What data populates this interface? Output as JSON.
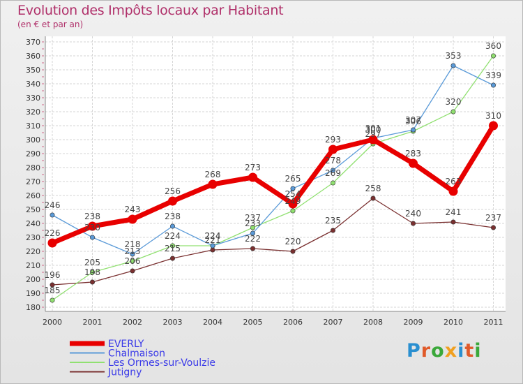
{
  "title": "Evolution des Impôts locaux par Habitant",
  "subtitle": "(en € et par an)",
  "logo": {
    "text": "Proxiti",
    "letter_colors": [
      "#2a8fd0",
      "#e05a2a",
      "#3aa83a",
      "#f0a020",
      "#2a8fd0",
      "#e05a2a",
      "#3aa83a"
    ]
  },
  "chart_data": {
    "type": "line",
    "title": "Evolution des Impôts locaux par Habitant",
    "subtitle": "(en € et par an)",
    "xlabel": "",
    "ylabel": "",
    "ylim": [
      180,
      370
    ],
    "ytick_step": 10,
    "grid": true,
    "x": [
      "2000",
      "2001",
      "2002",
      "2003",
      "2004",
      "2005",
      "2006",
      "2007",
      "2008",
      "2009",
      "2010",
      "2011"
    ],
    "series": [
      {
        "name": "EVERLY",
        "color": "#e80000",
        "values": [
          226,
          238,
          243,
          256,
          268,
          273,
          254,
          293,
          300,
          283,
          263,
          310
        ],
        "labels": [
          "226",
          "238",
          "243",
          "256",
          "268",
          "273",
          "254",
          "293",
          "300",
          "283",
          "263",
          "310"
        ]
      },
      {
        "name": "Chalmaison",
        "color": "#5a9ad8",
        "values": [
          246,
          230,
          218,
          238,
          224,
          233,
          265,
          278,
          301,
          307,
          353,
          339
        ],
        "labels": [
          "246",
          "230",
          "218",
          "238",
          "224",
          "233",
          "265",
          "278",
          "301",
          "307",
          "353",
          "339"
        ]
      },
      {
        "name": "Les Ormes-sur-Voulzie",
        "color": "#90e070",
        "values": [
          185,
          205,
          213,
          224,
          224,
          237,
          249,
          269,
          297,
          306,
          320,
          360
        ],
        "labels": [
          "185",
          "205",
          "213",
          "224",
          "224",
          "237",
          "249",
          "269",
          "297",
          "306",
          "320",
          "360"
        ]
      },
      {
        "name": "Jutigny",
        "color": "#7a3030",
        "values": [
          196,
          198,
          206,
          215,
          221,
          222,
          220,
          235,
          258,
          240,
          241,
          237
        ],
        "labels": [
          "196",
          "198",
          "206",
          "215",
          "221",
          "222",
          "220",
          "235",
          "258",
          "240",
          "241",
          "237"
        ]
      }
    ],
    "legend_position": "bottom-left"
  }
}
